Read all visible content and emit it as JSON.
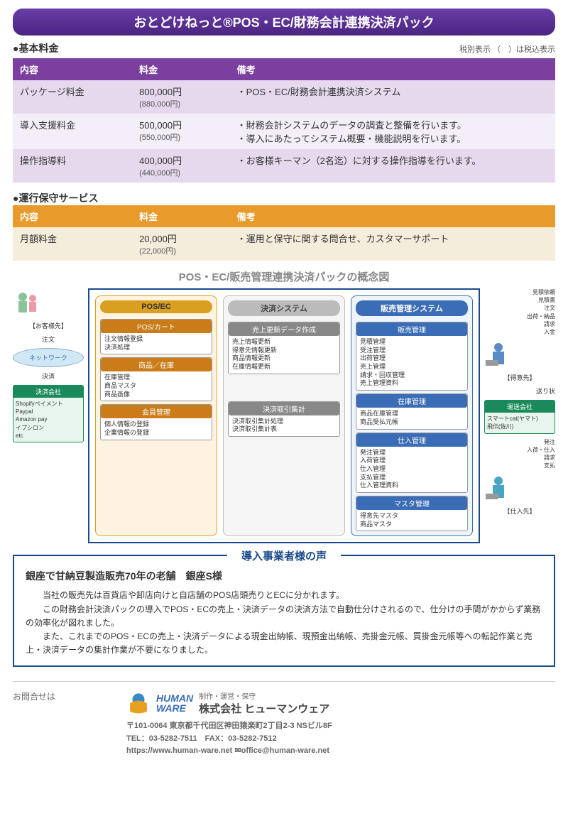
{
  "title": "おとどけねっと®POS・EC/財務会計連携決済パック",
  "section1": {
    "heading": "●基本料金",
    "tax_note": "税別表示 （　）は税込表示"
  },
  "table1": {
    "headers": [
      "内容",
      "料金",
      "備考"
    ],
    "rows": [
      {
        "c0": "パッケージ料金",
        "c1": "800,000円",
        "c1s": "(880,000円)",
        "c2": "・POS・EC/財務会計連携決済システム"
      },
      {
        "c0": "導入支援料金",
        "c1": "500,000円",
        "c1s": "(550,000円)",
        "c2": "・財務会計システムのデータの調査と整備を行います。\n・導入にあたってシステム概要・機能説明を行います。"
      },
      {
        "c0": "操作指導料",
        "c1": "400,000円",
        "c1s": "(440,000円)",
        "c2": "・お客様キーマン（2名迄）に対する操作指導を行います。"
      }
    ]
  },
  "section2": {
    "heading": "●運行保守サービス"
  },
  "table2": {
    "headers": [
      "内容",
      "料金",
      "備考"
    ],
    "rows": [
      {
        "c0": "月額料金",
        "c1": "20,000円",
        "c1s": "(22,000円)",
        "c2": "・運用と保守に関する問合せ、カスタマーサポート"
      }
    ]
  },
  "diagram": {
    "title": "POS・EC/販売管理連携決済パックの概念図",
    "left": {
      "customer": "【お客様先】",
      "order": "注文",
      "network": "ネットワーク",
      "payment": "決済",
      "pay_co_hdr": "決済会社",
      "pay_co_lines": [
        "Shopifyペイメント",
        "Paypal",
        "Amazon pay",
        "イプシロン",
        "etc"
      ]
    },
    "col_pos": {
      "title": "POS/EC",
      "box1_hdr": "POS/カート",
      "box1_lines": [
        "注文情報登録",
        "決済処理"
      ],
      "box2_hdr": "商品／在庫",
      "box2_lines": [
        "在庫管理",
        "商品マスタ",
        "商品画像"
      ],
      "box3_hdr": "会員管理",
      "box3_lines": [
        "個人情報の登録",
        "企業情報の登録"
      ]
    },
    "col_settle": {
      "title": "決済システム",
      "box1_hdr": "売上更新データ作成",
      "box1_lines": [
        "売上情報更新",
        "得意先情報更新",
        "商品情報更新",
        "在庫情報更新"
      ],
      "box2_hdr": "決済取引集計",
      "box2_lines": [
        "決済取引集計処理",
        "決済取引集計表"
      ]
    },
    "col_sales": {
      "title": "販売管理システム",
      "box1_hdr": "販売管理",
      "box1_lines": [
        "見積管理",
        "受注管理",
        "出荷管理",
        "売上管理",
        "請求・回収管理",
        "売上管理資料"
      ],
      "box2_hdr": "在庫管理",
      "box2_lines": [
        "商品在庫管理",
        "商品受払元帳"
      ],
      "box3_hdr": "仕入管理",
      "box3_lines": [
        "発注管理",
        "入荷管理",
        "仕入管理",
        "支払管理",
        "仕入管理資料"
      ],
      "box4_hdr": "マスタ管理",
      "box4_lines": [
        "得意先マスタ",
        "商品マスタ"
      ]
    },
    "right": {
      "cust_labels": [
        "見積依頼",
        "見積書",
        "注文",
        "出荷・納品",
        "請求",
        "入金"
      ],
      "cust": "【得意先】",
      "ship_hdr": "運送会社",
      "ship_lines": [
        "スマートcat(ヤマト)",
        "飛伝(佐川)"
      ],
      "ship_label": "送り状",
      "supp_labels": [
        "発注",
        "入荷・仕入",
        "請求",
        "支払"
      ],
      "supp": "【仕入先】"
    }
  },
  "testimonial": {
    "title": "導入事業者様の声",
    "head": "銀座で甘納豆製造販売70年の老舗　銀座S様",
    "body": "　当社の販売先は百貨店や卸店向けと自店舗のPOS店頭売りとECに分かれます。\n　この財務会計決済パックの導入でPOS・ECの売上・決済データの決済方法で自動仕分けされるので、仕分けの手間がかからず業務の効率化が図れました。\n　また、これまでのPOS・ECの売上・決済データによる現金出納帳、現預金出納帳、売掛金元帳、買掛金元帳等への転記作業と売上・決済データの集計作業が不要になりました。"
  },
  "footer": {
    "contact": "お問合せは",
    "brand1": "HUMAN",
    "brand2": "WARE",
    "co_sub": "制作・運営・保守",
    "co_name": "株式会社 ヒューマンウェア",
    "addr": "〒101-0064 東京都千代田区神田猿楽町2丁目2-3 NSビル8F",
    "tel": "TEL：03-5282-7511　FAX：03-5282-7512",
    "web": "https://www.human-ware.net ✉office@human-ware.net"
  }
}
